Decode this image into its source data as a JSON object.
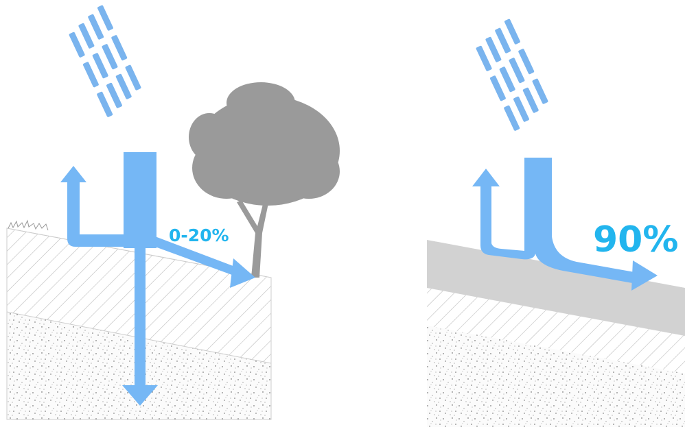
{
  "panels": [
    {
      "label": "0-20%"
    },
    {
      "label": "90%"
    }
  ]
}
